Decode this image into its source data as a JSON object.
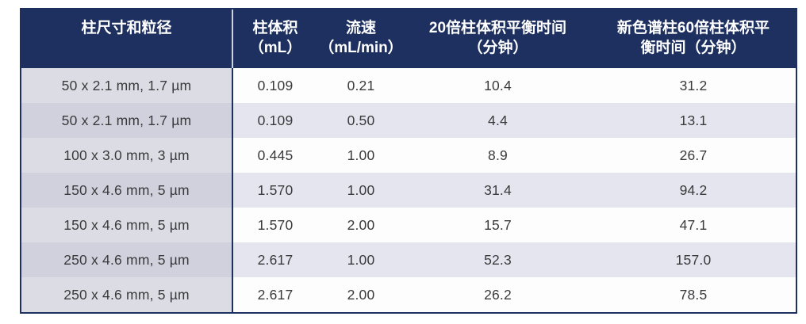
{
  "colors": {
    "header_background": "#1d3060",
    "table_border": "#1d3060",
    "row_alternate": "#e4e5ee",
    "first_column_odd": "#dcdde4",
    "first_column_even": "#d0d1dc",
    "cell_text": "#3a3a3c",
    "header_text": "#ffffff"
  },
  "table": {
    "headers": {
      "col1": "柱尺寸和粒径",
      "col2": "柱体积\n（mL）",
      "col3": "流速\n（mL/min）",
      "col4": "20倍柱体积平衡时间\n（分钟）",
      "col5": "新色谱柱60倍柱体积平\n衡时间（分钟）"
    },
    "rows": [
      {
        "size": "50 x 2.1 mm, 1.7 µm",
        "volume": "0.109",
        "flow": "0.21",
        "t20": "10.4",
        "t60": "31.2"
      },
      {
        "size": "50 x 2.1 mm, 1.7 µm",
        "volume": "0.109",
        "flow": "0.50",
        "t20": "4.4",
        "t60": "13.1"
      },
      {
        "size": "100 x 3.0 mm, 3 µm",
        "volume": "0.445",
        "flow": "1.00",
        "t20": "8.9",
        "t60": "26.7"
      },
      {
        "size": "150 x 4.6 mm, 5 µm",
        "volume": "1.570",
        "flow": "1.00",
        "t20": "31.4",
        "t60": "94.2"
      },
      {
        "size": "150 x 4.6 mm, 5 µm",
        "volume": "1.570",
        "flow": "2.00",
        "t20": "15.7",
        "t60": "47.1"
      },
      {
        "size": "250 x 4.6 mm, 5 µm",
        "volume": "2.617",
        "flow": "1.00",
        "t20": "52.3",
        "t60": "157.0"
      },
      {
        "size": "250 x 4.6 mm, 5 µm",
        "volume": "2.617",
        "flow": "2.00",
        "t20": "26.2",
        "t60": "78.5"
      }
    ]
  },
  "chart_data": {
    "type": "table",
    "title": "",
    "columns": [
      "柱尺寸和粒径",
      "柱体积（mL）",
      "流速（mL/min）",
      "20倍柱体积平衡时间（分钟）",
      "新色谱柱60倍柱体积平衡时间（分钟）"
    ],
    "cells": [
      [
        "50 x 2.1 mm, 1.7 µm",
        0.109,
        0.21,
        10.4,
        31.2
      ],
      [
        "50 x 2.1 mm, 1.7 µm",
        0.109,
        0.5,
        4.4,
        13.1
      ],
      [
        "100 x 3.0 mm, 3 µm",
        0.445,
        1.0,
        8.9,
        26.7
      ],
      [
        "150 x 4.6 mm, 5 µm",
        1.57,
        1.0,
        31.4,
        94.2
      ],
      [
        "150 x 4.6 mm, 5 µm",
        1.57,
        2.0,
        15.7,
        47.1
      ],
      [
        "250 x 4.6 mm, 5 µm",
        2.617,
        1.0,
        52.3,
        157.0
      ],
      [
        "250 x 4.6 mm, 5 µm",
        2.617,
        2.0,
        26.2,
        78.5
      ]
    ]
  }
}
